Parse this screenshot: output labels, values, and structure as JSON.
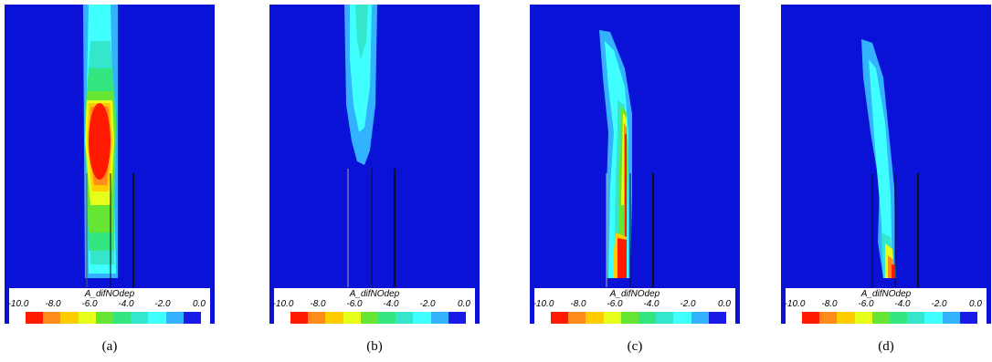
{
  "panels": [
    {
      "id": "a",
      "caption": "(a)",
      "legend_title": "A_difNOdep"
    },
    {
      "id": "b",
      "caption": "(b)",
      "legend_title": "A_difNOdep"
    },
    {
      "id": "c",
      "caption": "(c)",
      "legend_title": "A_difNOdep"
    },
    {
      "id": "d",
      "caption": "(d)",
      "legend_title": "A_difNOdep"
    }
  ],
  "legend": {
    "ticks": [
      "-10.0",
      "-8.0",
      "-6.0",
      "-4.0",
      "-2.0",
      "0.0"
    ],
    "colors": [
      "#ff1a00",
      "#ff8c1a",
      "#ffcc00",
      "#e6ff1a",
      "#66e633",
      "#33e680",
      "#33e6cc",
      "#40ffff",
      "#33b3ff",
      "#1a1ae6"
    ]
  },
  "colors": {
    "background": "#0a12d8",
    "lines": "#0d0d1a"
  }
}
